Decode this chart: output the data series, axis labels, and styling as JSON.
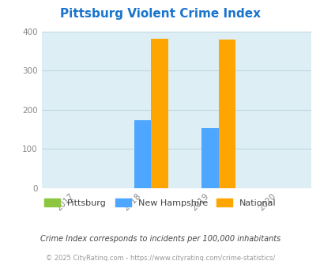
{
  "title": "Pittsburg Violent Crime Index",
  "title_color": "#1874CD",
  "bar_years": [
    2018,
    2019
  ],
  "xtick_labels": [
    "2017",
    "2018",
    "2019",
    "2020"
  ],
  "pittsburg": [
    0,
    0
  ],
  "new_hampshire": [
    172,
    153
  ],
  "national": [
    382,
    378
  ],
  "pittsburg_color": "#8DC63F",
  "new_hampshire_color": "#4da6ff",
  "national_color": "#FFA500",
  "ylim": [
    0,
    400
  ],
  "yticks": [
    0,
    100,
    200,
    300,
    400
  ],
  "bg_color": "#ddeef4",
  "bar_width": 0.25,
  "legend_labels": [
    "Pittsburg",
    "New Hampshire",
    "National"
  ],
  "note": "Crime Index corresponds to incidents per 100,000 inhabitants",
  "footer": "© 2025 CityRating.com - https://www.cityrating.com/crime-statistics/",
  "note_color": "#444444",
  "footer_color": "#999999",
  "grid_color": "#c0d8e0"
}
